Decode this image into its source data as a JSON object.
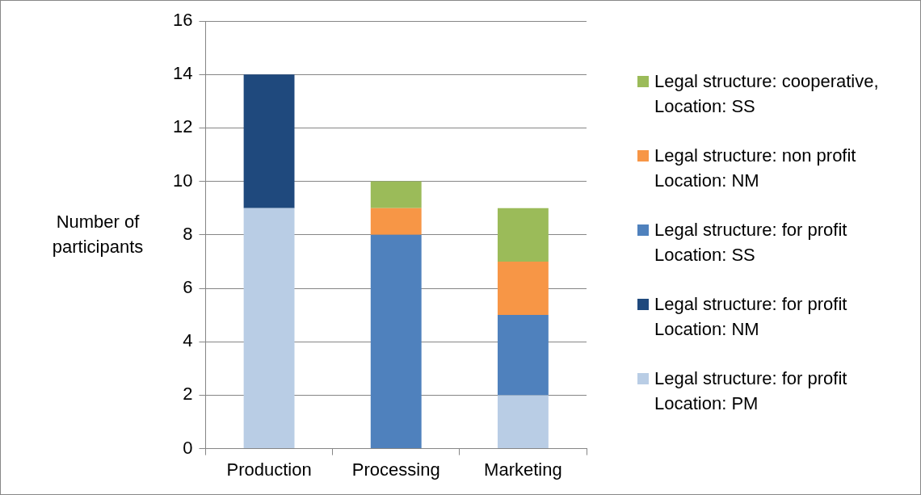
{
  "chart_data": {
    "type": "bar",
    "stacked": true,
    "ylabel": "Number of participants",
    "categories": [
      "Production",
      "Processing",
      "Marketing"
    ],
    "series": [
      {
        "name": "Legal structure: for profit Location: PM",
        "color": "#b9cde5",
        "values": [
          9,
          0,
          2
        ]
      },
      {
        "name": "Legal structure: for profit Location: NM",
        "color": "#1f497d",
        "values": [
          5,
          0,
          0
        ]
      },
      {
        "name": "Legal structure: for profit Location: SS",
        "color": "#4f81bd",
        "values": [
          0,
          8,
          3
        ]
      },
      {
        "name": "Legal structure: non profit Location: NM",
        "color": "#f79646",
        "values": [
          0,
          1,
          2
        ]
      },
      {
        "name": "Legal structure: cooperative, Location: SS",
        "color": "#9bbb59",
        "values": [
          0,
          1,
          2
        ]
      }
    ],
    "ylim": [
      0,
      16
    ],
    "yticks": [
      0,
      2,
      4,
      6,
      8,
      10,
      12,
      14,
      16
    ],
    "grid": "y",
    "legend": "right"
  }
}
